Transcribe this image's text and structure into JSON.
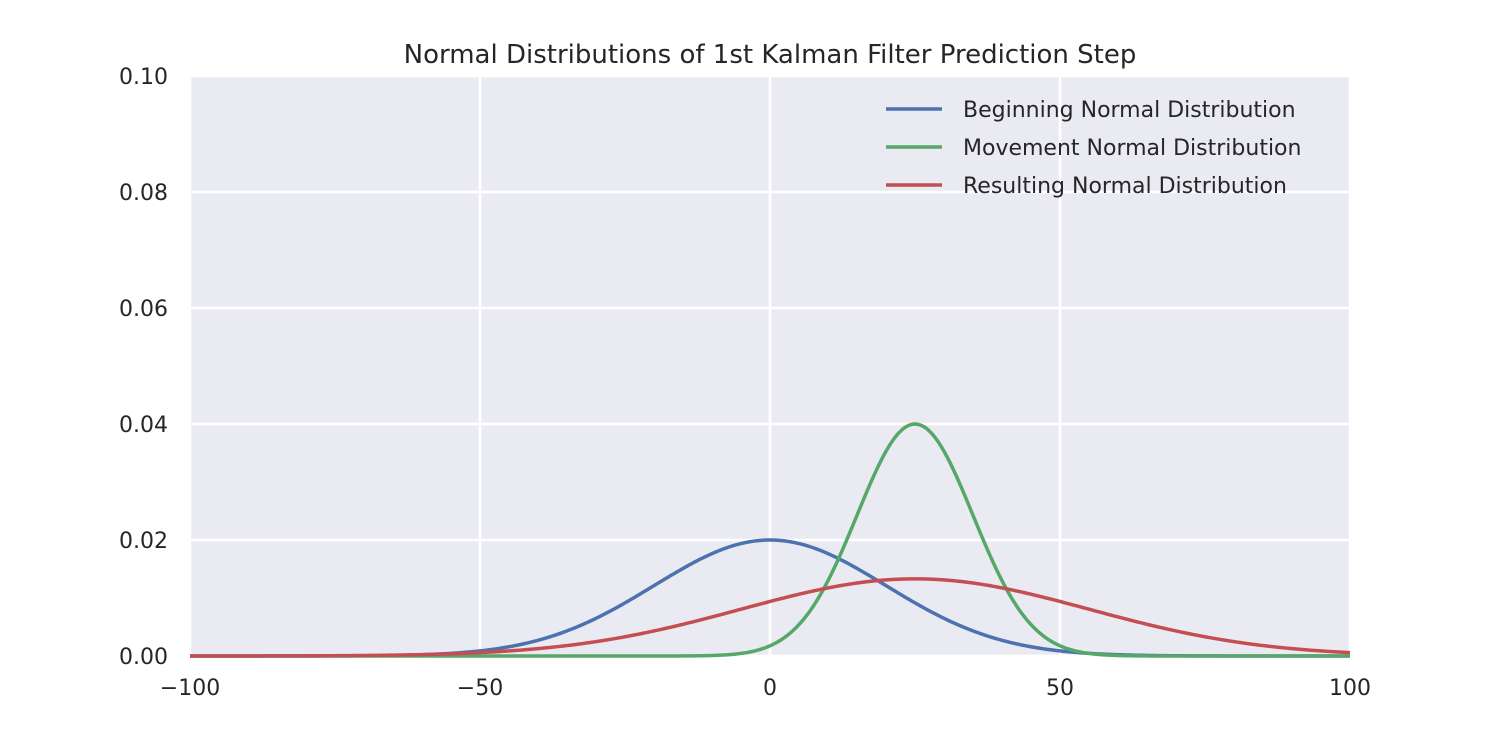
{
  "chart_data": {
    "type": "line",
    "title": "Normal Distributions of 1st Kalman Filter Prediction Step",
    "xlabel": "",
    "ylabel": "",
    "xlim": [
      -100,
      100
    ],
    "ylim": [
      0.0,
      0.1
    ],
    "x_ticks": [
      -100,
      -50,
      0,
      50,
      100
    ],
    "x_tick_labels": [
      "−100",
      "−50",
      "0",
      "50",
      "100"
    ],
    "y_ticks": [
      0.0,
      0.02,
      0.04,
      0.06,
      0.08,
      0.1
    ],
    "y_tick_labels": [
      "0.00",
      "0.02",
      "0.04",
      "0.06",
      "0.08",
      "0.10"
    ],
    "grid": true,
    "legend_position": "top-right",
    "series": [
      {
        "name": "Beginning Normal Distribution",
        "color": "#4c72b0",
        "distribution": "normal",
        "mean": 0,
        "std": 20,
        "peak": 0.02
      },
      {
        "name": "Movement Normal Distribution",
        "color": "#55a868",
        "distribution": "normal",
        "mean": 25,
        "std": 10,
        "peak": 0.04
      },
      {
        "name": "Resulting Normal Distribution",
        "color": "#c44e52",
        "distribution": "normal",
        "mean": 25,
        "std": 30,
        "peak": 0.0133
      }
    ]
  }
}
